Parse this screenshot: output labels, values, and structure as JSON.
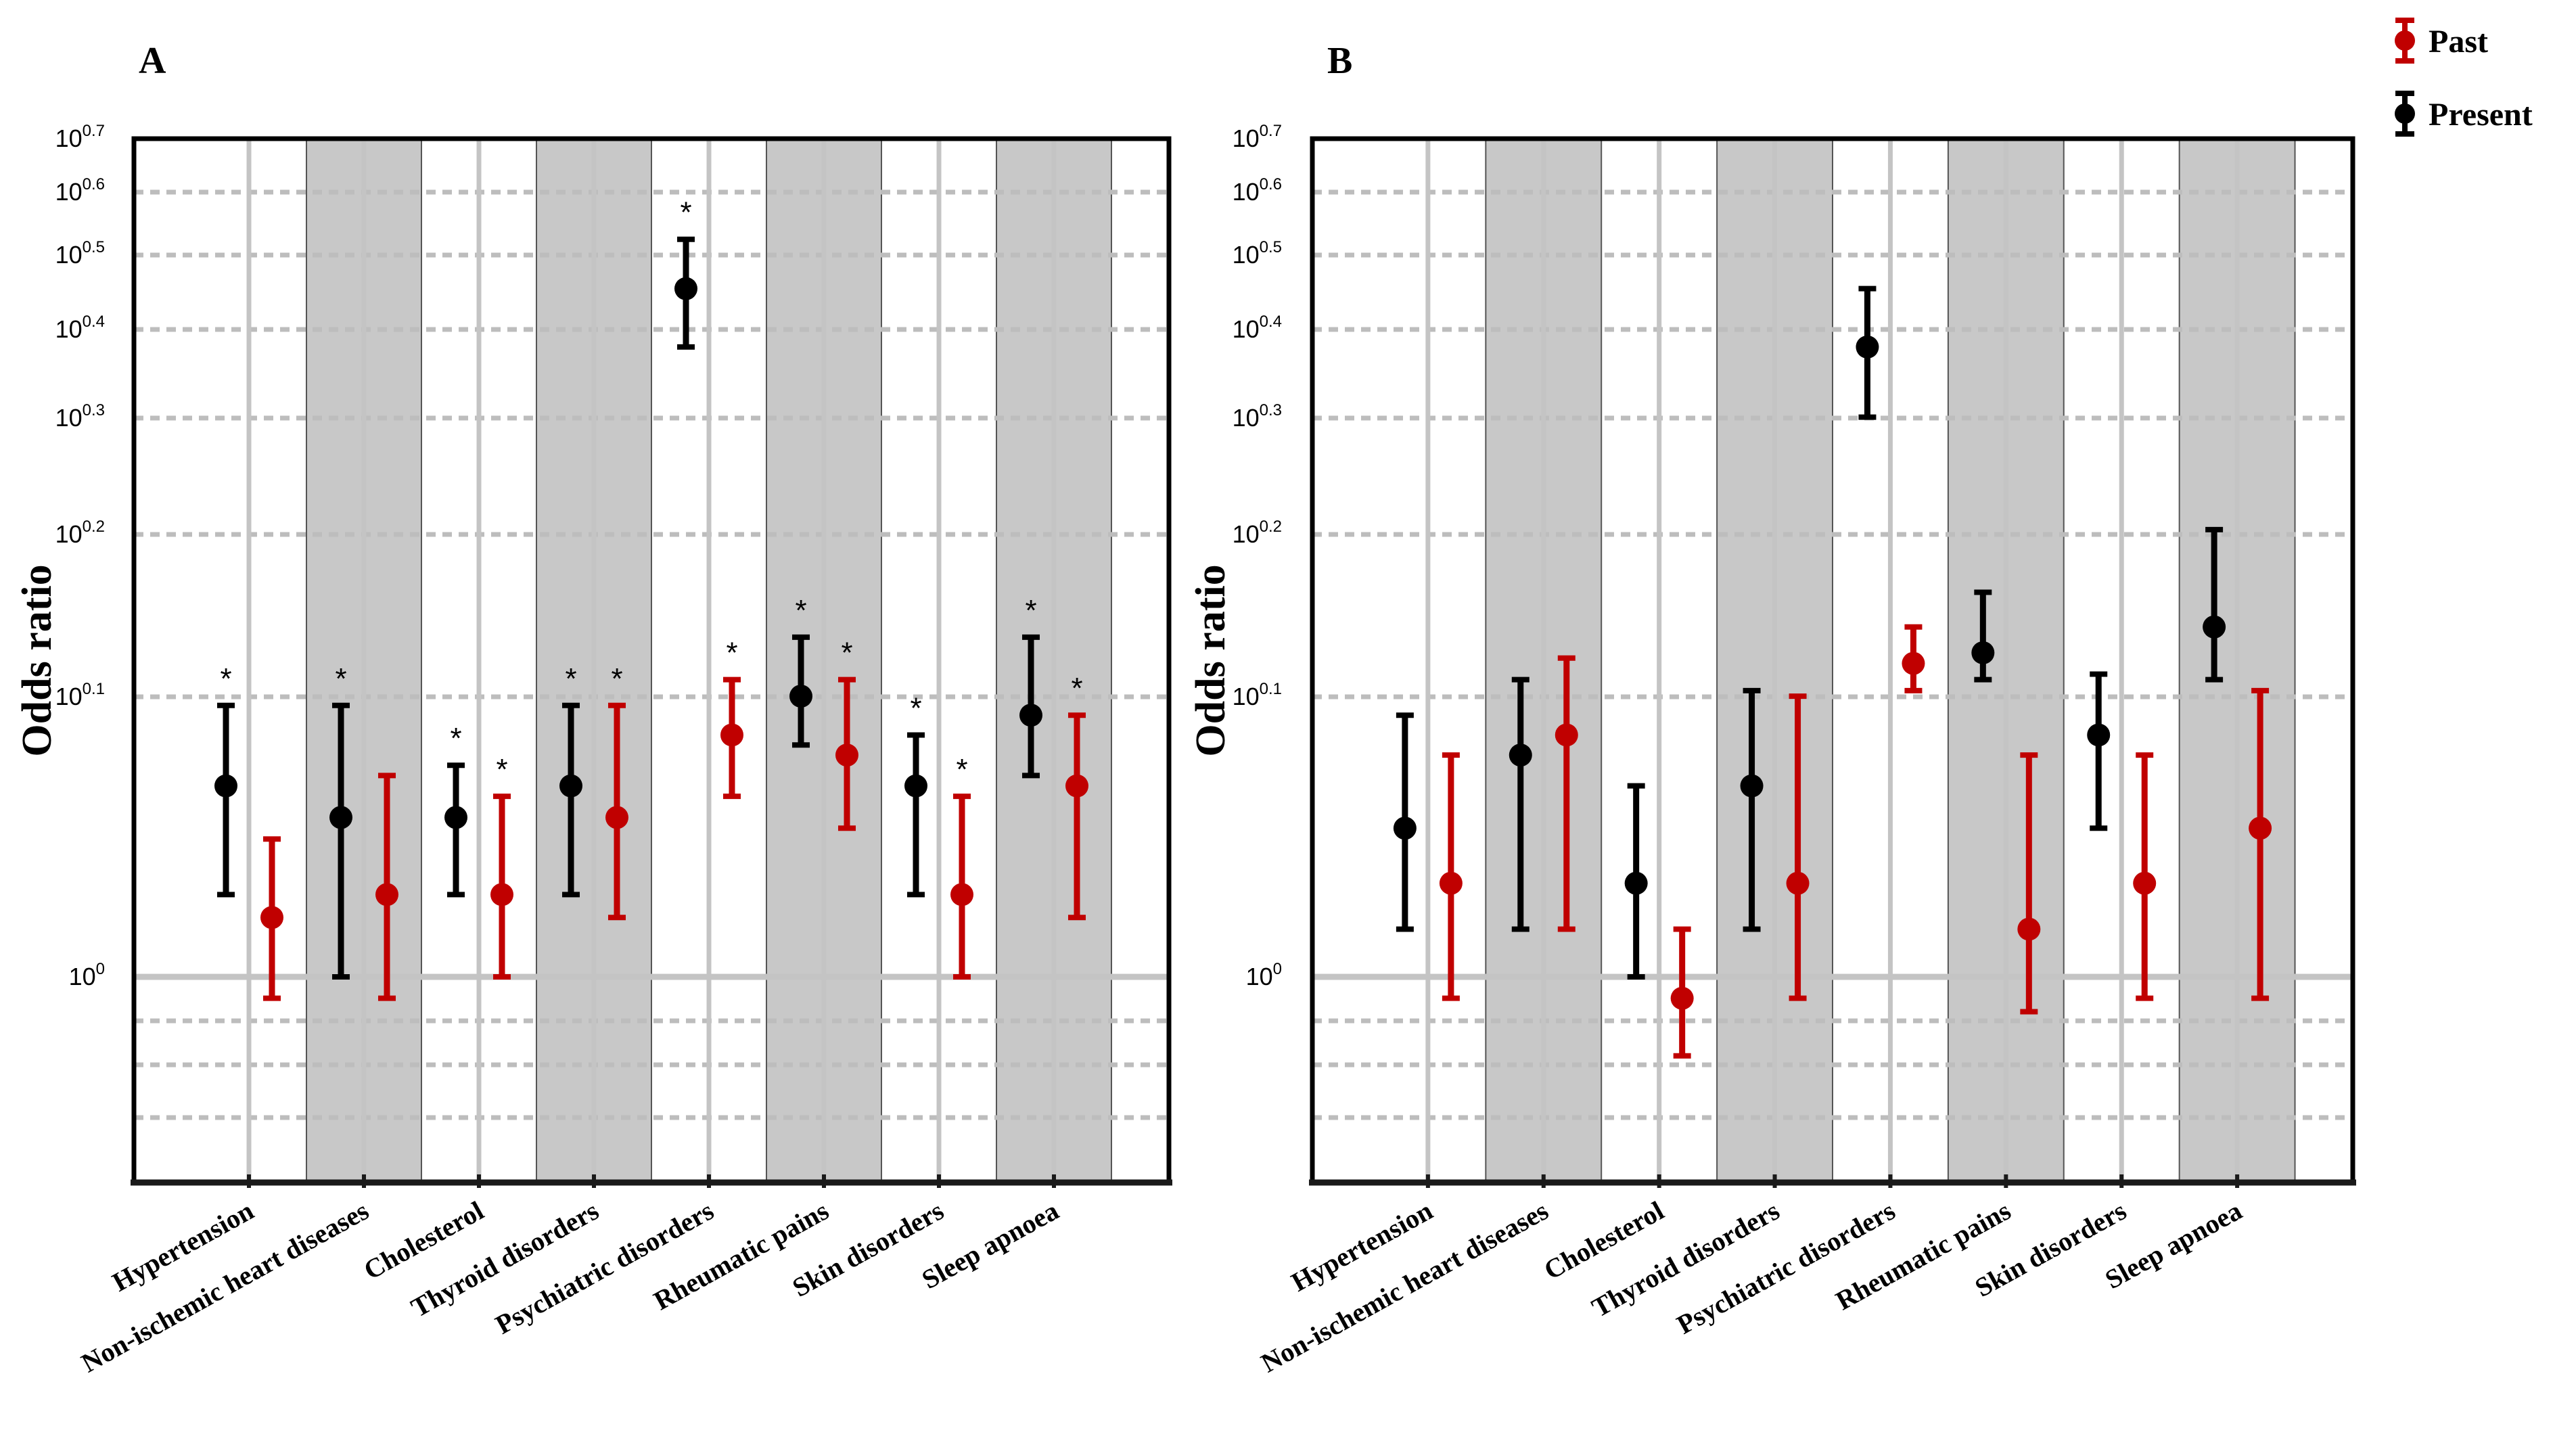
{
  "legend": {
    "past": "Past",
    "present": "Present",
    "past_color": "#c00000",
    "present_color": "#000000"
  },
  "y_ticks": [
    {
      "base": "10",
      "exp": "0",
      "value": 1.0
    },
    {
      "base": "10",
      "exp": "0.1",
      "value": 1.2589
    },
    {
      "base": "10",
      "exp": "0.2",
      "value": 1.5849
    },
    {
      "base": "10",
      "exp": "0.3",
      "value": 1.9953
    },
    {
      "base": "10",
      "exp": "0.4",
      "value": 2.5119
    },
    {
      "base": "10",
      "exp": "0.5",
      "value": 3.1623
    },
    {
      "base": "10",
      "exp": "0.6",
      "value": 3.9811
    },
    {
      "base": "10",
      "exp": "0.7",
      "value": 5.0119
    }
  ],
  "chart_data": [
    {
      "type": "errorbar",
      "panel": "A",
      "ylabel": "Odds ratio",
      "yscale": "log",
      "ylim": [
        0.8,
        5.0119
      ],
      "reference_line": 1.0,
      "categories": [
        "Hypertension",
        "Non-ischemic heart diseases",
        "Cholesterol",
        "Thyroid disorders",
        "Psychiatric disorders",
        "Rheumatic pains",
        "Skin disorders",
        "Sleep apnoea"
      ],
      "series": [
        {
          "name": "Present",
          "points": [
            {
              "mid": 1.17,
              "low": 1.07,
              "high": 1.25,
              "star": true
            },
            {
              "mid": 1.14,
              "low": 1.0,
              "high": 1.25,
              "star": true
            },
            {
              "mid": 1.14,
              "low": 1.07,
              "high": 1.19,
              "star": true
            },
            {
              "mid": 1.17,
              "low": 1.07,
              "high": 1.25,
              "star": true
            },
            {
              "mid": 2.85,
              "low": 2.4,
              "high": 3.35,
              "star": true
            },
            {
              "mid": 1.26,
              "low": 1.21,
              "high": 1.37,
              "star": true
            },
            {
              "mid": 1.17,
              "low": 1.07,
              "high": 1.22,
              "star": true
            },
            {
              "mid": 1.24,
              "low": 1.18,
              "high": 1.37,
              "star": true
            }
          ]
        },
        {
          "name": "Past",
          "points": [
            {
              "mid": 1.05,
              "low": 0.95,
              "high": 1.12,
              "star": false
            },
            {
              "mid": 1.07,
              "low": 0.95,
              "high": 1.18,
              "star": false
            },
            {
              "mid": 1.07,
              "low": 1.0,
              "high": 1.16,
              "star": true
            },
            {
              "mid": 1.14,
              "low": 1.05,
              "high": 1.25,
              "star": true
            },
            {
              "mid": 1.22,
              "low": 1.16,
              "high": 1.29,
              "star": true
            },
            {
              "mid": 1.2,
              "low": 1.13,
              "high": 1.29,
              "star": true
            },
            {
              "mid": 1.07,
              "low": 1.0,
              "high": 1.16,
              "star": true
            },
            {
              "mid": 1.17,
              "low": 1.05,
              "high": 1.24,
              "star": true
            }
          ]
        }
      ]
    },
    {
      "type": "errorbar",
      "panel": "B",
      "ylabel": "Odds ratio",
      "yscale": "log",
      "ylim": [
        0.8,
        5.0119
      ],
      "reference_line": 1.0,
      "categories": [
        "Hypertension",
        "Non-ischemic heart diseases",
        "Cholesterol",
        "Thyroid disorders",
        "Psychiatric disorders",
        "Rheumatic pains",
        "Skin disorders",
        "Sleep apnoea"
      ],
      "series": [
        {
          "name": "Present",
          "points": [
            {
              "mid": 1.13,
              "low": 1.04,
              "high": 1.24
            },
            {
              "mid": 1.2,
              "low": 1.04,
              "high": 1.29
            },
            {
              "mid": 1.08,
              "low": 1.0,
              "high": 1.17
            },
            {
              "mid": 1.17,
              "low": 1.04,
              "high": 1.27
            },
            {
              "mid": 2.4,
              "low": 2.0,
              "high": 2.85
            },
            {
              "mid": 1.34,
              "low": 1.29,
              "high": 1.46
            },
            {
              "mid": 1.22,
              "low": 1.13,
              "high": 1.3
            },
            {
              "mid": 1.39,
              "low": 1.29,
              "high": 1.6
            }
          ]
        },
        {
          "name": "Past",
          "points": [
            {
              "mid": 1.08,
              "low": 0.95,
              "high": 1.2
            },
            {
              "mid": 1.22,
              "low": 1.04,
              "high": 1.33
            },
            {
              "mid": 0.95,
              "low": 0.86,
              "high": 1.04
            },
            {
              "mid": 1.08,
              "low": 0.95,
              "high": 1.26
            },
            {
              "mid": 1.32,
              "low": 1.27,
              "high": 1.39
            },
            {
              "mid": 1.04,
              "low": 0.92,
              "high": 1.2
            },
            {
              "mid": 1.08,
              "low": 0.95,
              "high": 1.2
            },
            {
              "mid": 1.13,
              "low": 0.95,
              "high": 1.27
            }
          ]
        }
      ]
    }
  ]
}
